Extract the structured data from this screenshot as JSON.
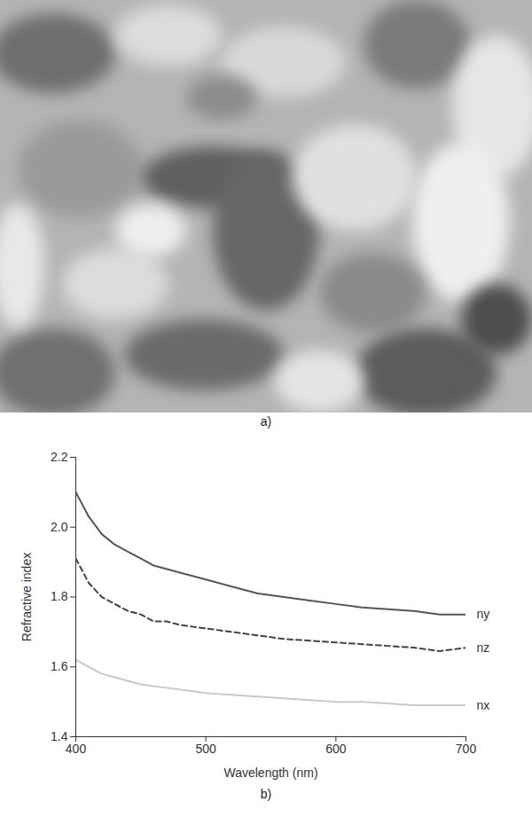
{
  "image_panel": {
    "label": "a)"
  },
  "chart_data": {
    "type": "line",
    "panel_label": "b)",
    "x_label": "Wavelength (nm)",
    "y_label": "Refractive index",
    "xlim": [
      400,
      700
    ],
    "xticks": [
      400,
      500,
      600,
      700
    ],
    "ylim": [
      1.4,
      2.2
    ],
    "yticks": [
      1.4,
      1.6,
      1.8,
      {
        "value": 2,
        "label": "2.0"
      },
      2.2
    ],
    "x": [
      400,
      410,
      420,
      430,
      440,
      450,
      460,
      470,
      480,
      500,
      520,
      540,
      560,
      580,
      600,
      620,
      640,
      660,
      680,
      700
    ],
    "series": [
      {
        "name": "ny",
        "color": "#555555",
        "line_style": "solid",
        "values": [
          2.1,
          2.03,
          1.98,
          1.95,
          1.93,
          1.91,
          1.89,
          1.88,
          1.87,
          1.85,
          1.83,
          1.81,
          1.8,
          1.79,
          1.78,
          1.77,
          1.765,
          1.76,
          1.75,
          1.75
        ]
      },
      {
        "name": "nz",
        "color": "#444444",
        "line_style": "dashed",
        "values": [
          1.91,
          1.84,
          1.8,
          1.78,
          1.76,
          1.75,
          1.73,
          1.73,
          1.72,
          1.71,
          1.7,
          1.69,
          1.68,
          1.675,
          1.67,
          1.665,
          1.66,
          1.655,
          1.645,
          1.655
        ]
      },
      {
        "name": "nx",
        "color": "#c8c8c8",
        "line_style": "solid",
        "values": [
          1.62,
          1.6,
          1.58,
          1.57,
          1.56,
          1.55,
          1.545,
          1.54,
          1.535,
          1.525,
          1.52,
          1.515,
          1.51,
          1.505,
          1.5,
          1.5,
          1.495,
          1.49,
          1.49,
          1.49
        ]
      }
    ]
  }
}
